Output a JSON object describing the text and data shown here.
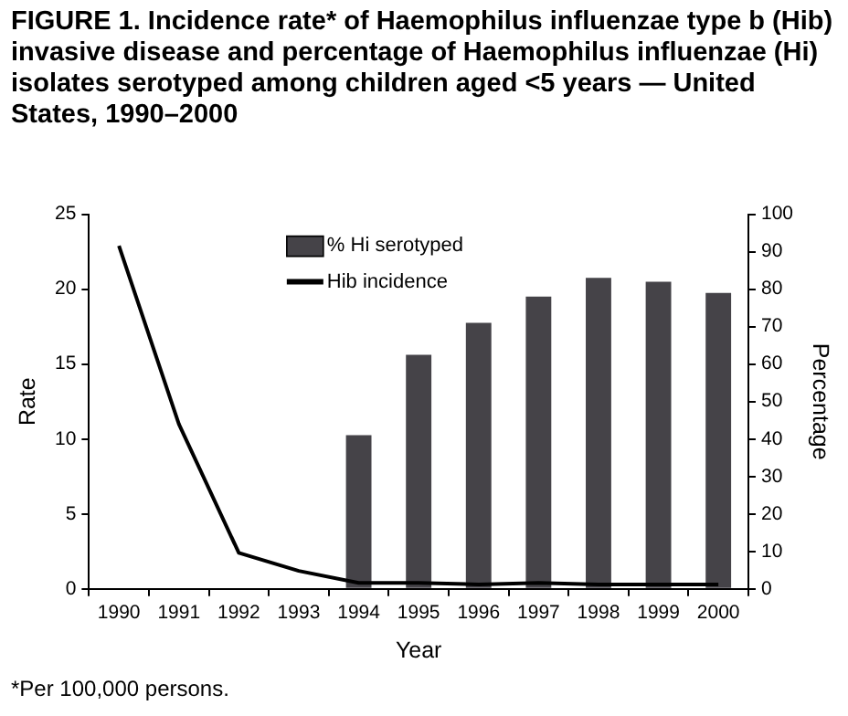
{
  "chart_data": {
    "type": "bar",
    "title": "FIGURE 1. Incidence rate* of Haemophilus influenzae type b (Hib) invasive disease and percentage of Haemophilus influenzae (Hi) isolates serotyped among children aged <5 years — United States, 1990–2000",
    "xlabel": "Year",
    "ylabel": "Rate",
    "y2label": "Percentage",
    "categories": [
      "1990",
      "1991",
      "1992",
      "1993",
      "1994",
      "1995",
      "1996",
      "1997",
      "1998",
      "1999",
      "2000"
    ],
    "series": [
      {
        "name": "% Hi serotyped",
        "axis": "y2",
        "color": "#454348",
        "values": [
          null,
          null,
          null,
          null,
          41,
          62.5,
          71,
          78,
          83,
          82,
          79
        ]
      },
      {
        "name": "Hib incidence",
        "type": "line",
        "color": "#000000",
        "values": [
          22.9,
          11,
          2.4,
          1.2,
          0.4,
          0.4,
          0.3,
          0.4,
          0.3,
          0.3,
          0.3
        ]
      }
    ],
    "ylim": [
      0,
      25
    ],
    "yticks": [
      0,
      5,
      10,
      15,
      20,
      25
    ],
    "y2lim": [
      0,
      100
    ],
    "y2ticks": [
      0,
      10,
      20,
      30,
      40,
      50,
      60,
      70,
      80,
      90,
      100
    ],
    "grid": false,
    "legend": "top",
    "marker": "none",
    "annotations": [
      "*Per 100,000 persons."
    ]
  }
}
